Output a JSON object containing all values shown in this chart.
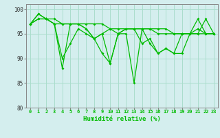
{
  "xlabel": "Humidité relative (%)",
  "ylabel": "",
  "background_color": "#d4eeee",
  "grid_color": "#aaddcc",
  "line_color": "#00bb00",
  "ylim": [
    80,
    101
  ],
  "xlim": [
    -0.5,
    23.5
  ],
  "yticks": [
    80,
    85,
    90,
    95,
    100
  ],
  "xticks": [
    0,
    1,
    2,
    3,
    4,
    5,
    6,
    7,
    8,
    9,
    10,
    11,
    12,
    13,
    14,
    15,
    16,
    17,
    18,
    19,
    20,
    21,
    22,
    23
  ],
  "series": [
    [
      97,
      99,
      98,
      97,
      88,
      97,
      97,
      96,
      94,
      95,
      89,
      95,
      96,
      96,
      93,
      94,
      91,
      92,
      91,
      95,
      95,
      98,
      95,
      95
    ],
    [
      97,
      98,
      98,
      97,
      90,
      93,
      96,
      95,
      94,
      95,
      96,
      95,
      96,
      96,
      96,
      96,
      95,
      95,
      95,
      95,
      95,
      96,
      95,
      95
    ],
    [
      97,
      98,
      98,
      97,
      97,
      97,
      97,
      97,
      97,
      97,
      96,
      96,
      96,
      96,
      96,
      96,
      96,
      96,
      95,
      95,
      95,
      95,
      95,
      95
    ],
    [
      97,
      99,
      98,
      98,
      97,
      97,
      97,
      96,
      94,
      91,
      89,
      95,
      95,
      85,
      96,
      93,
      91,
      92,
      91,
      91,
      95,
      95,
      98,
      95
    ]
  ]
}
